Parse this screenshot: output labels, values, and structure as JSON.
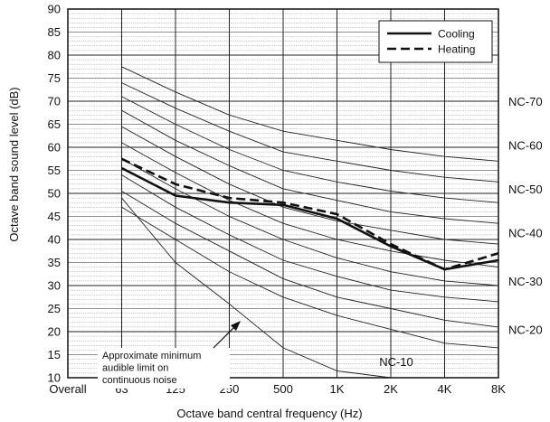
{
  "chart_data": {
    "type": "line",
    "title": "",
    "xlabel": "Octave band central frequency (Hz)",
    "ylabel": "Octave band sound level (dB)",
    "categories": [
      "Overall",
      "63",
      "125",
      "250",
      "500",
      "1K",
      "2K",
      "4K",
      "8K"
    ],
    "ylim": [
      10,
      90
    ],
    "yticks": [
      10,
      15,
      20,
      25,
      30,
      35,
      40,
      45,
      50,
      55,
      60,
      65,
      70,
      75,
      80,
      85,
      90
    ],
    "grid": true,
    "legend_position": "top-right",
    "series": [
      {
        "name": "Cooling",
        "style": "solid",
        "values": [
          null,
          55.5,
          49.5,
          48,
          47.5,
          44.5,
          38.5,
          33.5,
          35.5
        ]
      },
      {
        "name": "Heating",
        "style": "dashed",
        "values": [
          null,
          57.5,
          52,
          49,
          48,
          45.5,
          39,
          33.5,
          37
        ]
      }
    ],
    "nc_curves": [
      {
        "values": [
          null,
          77.5,
          72,
          67,
          63.5,
          61.5,
          59.5,
          58,
          57
        ]
      },
      {
        "values": [
          null,
          74,
          68.5,
          63.5,
          59,
          57,
          55,
          53.5,
          52.5
        ]
      },
      {
        "values": [
          null,
          71,
          65,
          59.5,
          55,
          52.5,
          50.5,
          49,
          48
        ]
      },
      {
        "values": [
          null,
          68,
          61.5,
          56,
          51,
          48.5,
          46,
          44.5,
          43.5
        ]
      },
      {
        "values": [
          null,
          64.5,
          58,
          52,
          47,
          44,
          42,
          40,
          39
        ]
      },
      {
        "values": [
          null,
          61,
          54.5,
          48.5,
          43.5,
          40,
          37.5,
          35.5,
          34
        ]
      },
      {
        "values": [
          null,
          57.5,
          51,
          45,
          40,
          36,
          33,
          31,
          30
        ]
      },
      {
        "values": [
          null,
          54,
          47,
          41,
          35.5,
          32,
          29,
          27.5,
          26.5
        ]
      },
      {
        "values": [
          null,
          50.5,
          43.5,
          37.5,
          31.5,
          27.5,
          25,
          22.5,
          21
        ]
      },
      {
        "values": [
          null,
          47,
          40,
          33,
          27.5,
          23.5,
          20.5,
          17.5,
          16.5
        ]
      },
      {
        "values": [
          null,
          49,
          35,
          26,
          16.5,
          11.5,
          10,
          null,
          null
        ]
      }
    ],
    "nc_labels": [
      {
        "text": "NC-70",
        "y": 70
      },
      {
        "text": "NC-60",
        "y": 60.5
      },
      {
        "text": "NC-50",
        "y": 51
      },
      {
        "text": "NC-40",
        "y": 41.5
      },
      {
        "text": "NC-30",
        "y": 31
      },
      {
        "text": "NC-20",
        "y": 20.5
      }
    ],
    "nc10_label": "NC-10",
    "annotation": {
      "lines": [
        "Approximate minimum",
        "audible limit on",
        "continuous noise"
      ]
    }
  },
  "colors": {
    "data_line": "#111111",
    "nc_curve": "#222222",
    "major_grid": "#222222",
    "minor_grid": "#888888"
  }
}
